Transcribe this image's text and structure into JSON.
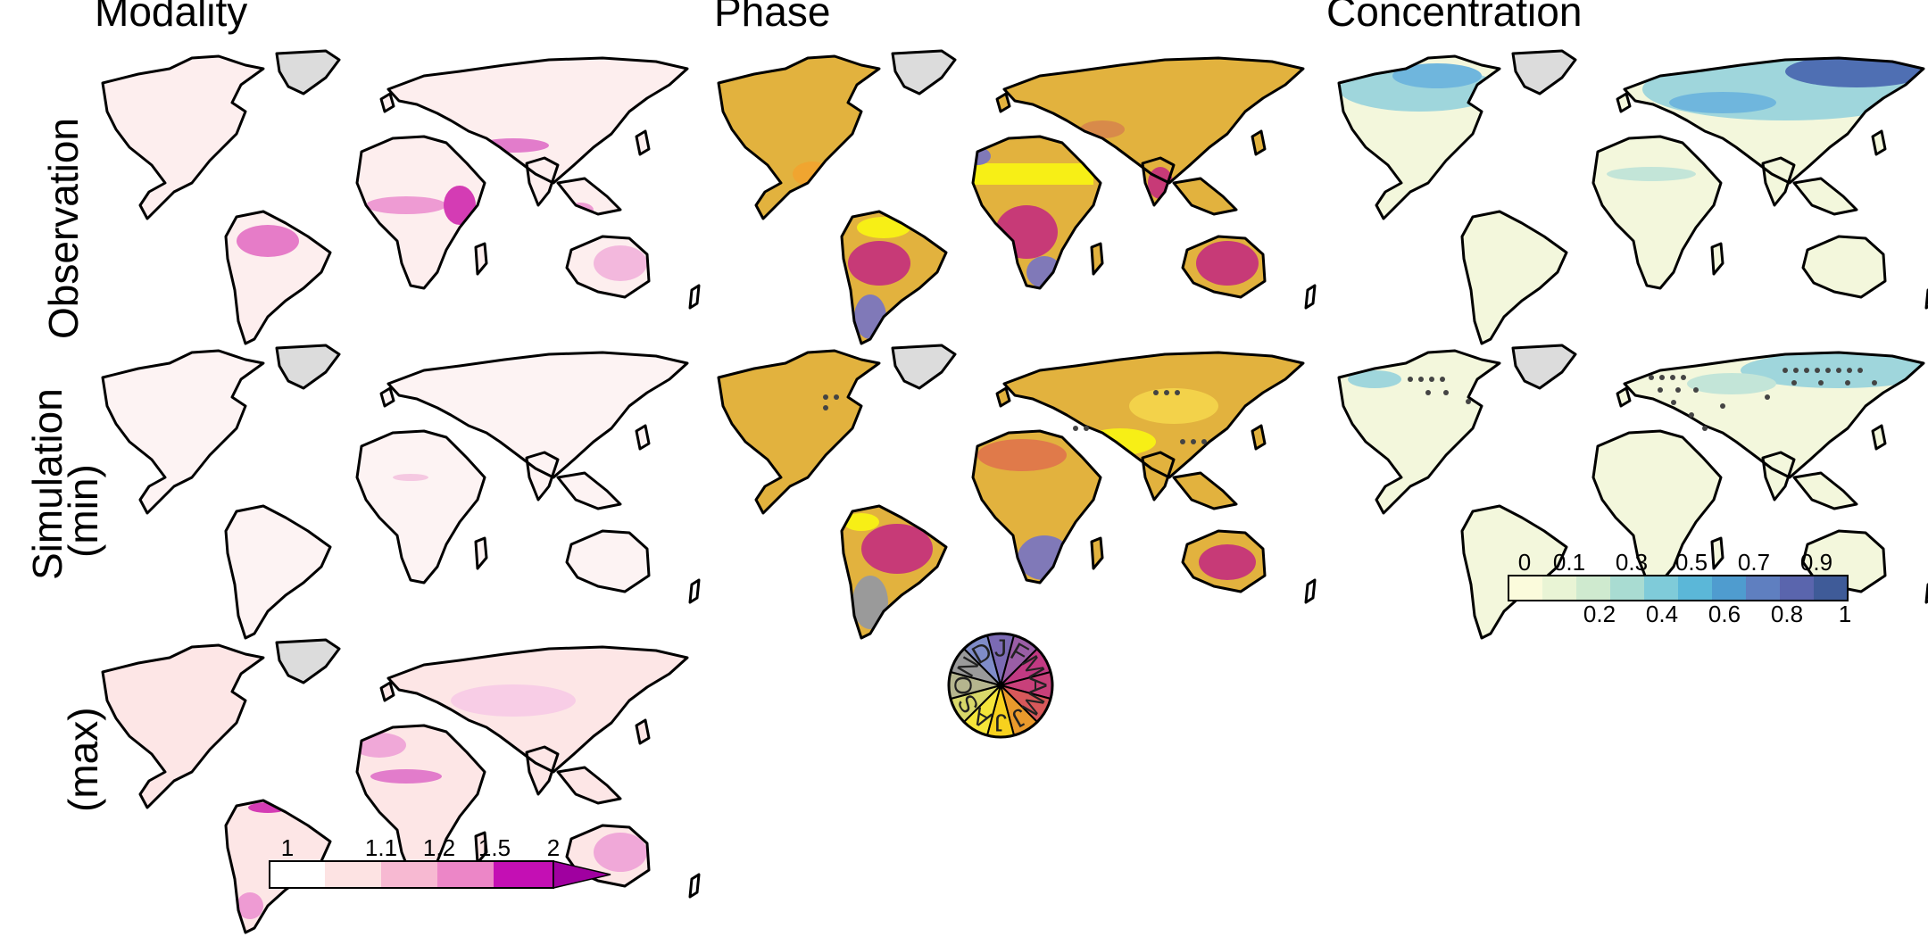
{
  "column_titles": [
    "Modality",
    "Phase",
    "Concentration"
  ],
  "row_titles": {
    "observation": "Observation",
    "simulation": "Simulation",
    "min": "(min)",
    "max": "(max)"
  },
  "modality_legend": {
    "labels": [
      "1",
      "1.1",
      "1.2",
      "1.5",
      "2"
    ],
    "colors": [
      "#ffffff",
      "#fde3e3",
      "#f7b9d2",
      "#ec86c7",
      "#c40fb4",
      "#a000a0"
    ]
  },
  "concentration_legend": {
    "top_labels": [
      "0",
      "0.1",
      "0.3",
      "0.5",
      "0.7",
      "0.9"
    ],
    "bottom_labels": [
      "0.2",
      "0.4",
      "0.6",
      "0.8",
      "1"
    ],
    "colors": [
      "#fbfbdc",
      "#e9f4d5",
      "#cfeacf",
      "#a9dcd2",
      "#7fcbd9",
      "#5bb7d8",
      "#4f9ccf",
      "#5f7fc0",
      "#5a65ad",
      "#3f5b98"
    ]
  },
  "phase_wheel": {
    "months": [
      "J",
      "F",
      "M",
      "A",
      "M",
      "J",
      "J",
      "A",
      "S",
      "O",
      "N",
      "D"
    ],
    "colors": [
      "#7b6ab4",
      "#9a5ea6",
      "#c13a83",
      "#c8407a",
      "#d8585a",
      "#ea9a2c",
      "#f7d11e",
      "#f5e53a",
      "#d8d86a",
      "#b5b58e",
      "#9a9a9a",
      "#7f8cc8"
    ]
  },
  "map_colors": {
    "land_base": "#ffffff",
    "greenland": "#dcdcdc",
    "outline": "#000000",
    "phase_land": "#e2b23e",
    "phase_yellow": "#f7ef16",
    "phase_magenta": "#c73a77",
    "phase_purple": "#8079b8",
    "conc_low": "#f3f7dc",
    "conc_mid": "#9fd6dc",
    "conc_high": "#4f6fb3",
    "mod_low": "#fdeeee",
    "mod_high": "#d43cb4",
    "dot": "#444444"
  }
}
